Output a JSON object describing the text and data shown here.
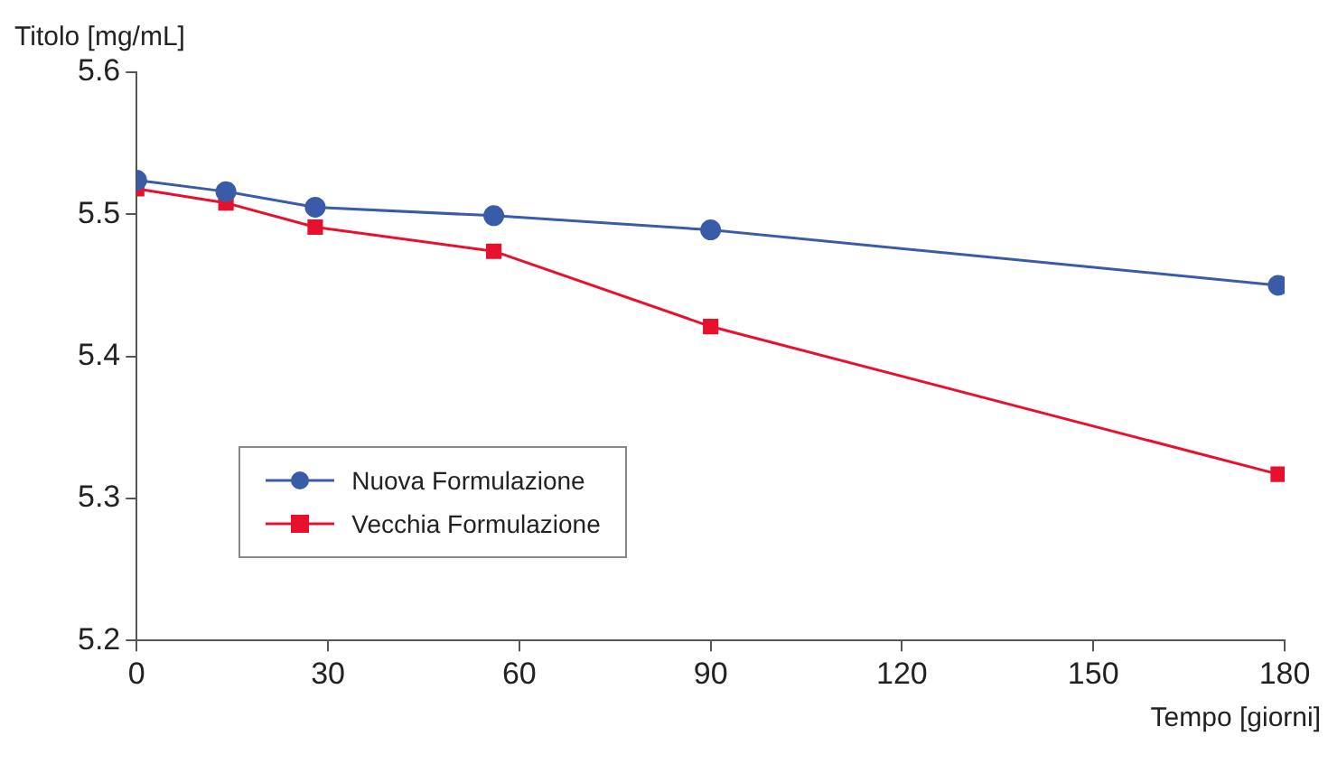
{
  "chart_data": {
    "type": "line",
    "xlabel": "Tempo [giorni]",
    "ylabel": "Titolo [mg/mL]",
    "x": [
      0,
      14,
      28,
      56,
      90,
      179
    ],
    "series": [
      {
        "name": "Nuova Formulazione",
        "color": "#3a5ba8",
        "marker": "circle",
        "values": [
          5.524,
          5.516,
          5.505,
          5.499,
          5.489,
          5.45
        ]
      },
      {
        "name": "Vecchia Formulazione",
        "color": "#e8112d",
        "marker": "square",
        "values": [
          5.518,
          5.508,
          5.491,
          5.474,
          5.421,
          5.317
        ]
      }
    ],
    "xlim": [
      0,
      180
    ],
    "xticks": [
      0,
      30,
      60,
      90,
      120,
      150,
      180
    ],
    "ylim": [
      5.2,
      5.6
    ],
    "yticks": [
      5.2,
      5.3,
      5.4,
      5.5,
      5.6
    ],
    "grid": false,
    "legend": "bottom left",
    "line_style": "solid"
  }
}
